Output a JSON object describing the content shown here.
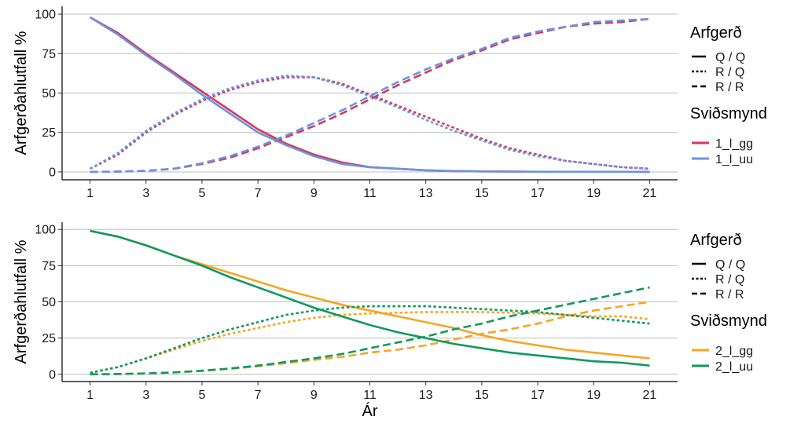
{
  "chart_data": [
    {
      "type": "line",
      "panel": "top",
      "xlabel": "",
      "ylabel": "Arfgerðahlutfall %",
      "xlim": [
        1,
        21
      ],
      "ylim": [
        0,
        100
      ],
      "x_ticks": [
        1,
        3,
        5,
        7,
        9,
        11,
        13,
        15,
        17,
        19,
        21
      ],
      "y_ticks": [
        0,
        25,
        50,
        75,
        100
      ],
      "grid": "horizontal",
      "legend_position": "right",
      "legend": {
        "genotype_title": "Arfgerð",
        "genotypes": [
          {
            "label": "Q / Q",
            "linetype": "solid"
          },
          {
            "label": "R / Q",
            "linetype": "dotted"
          },
          {
            "label": "R / R",
            "linetype": "dashed"
          }
        ],
        "scenario_title": "Sviðsmynd",
        "scenarios": [
          {
            "label": "1_l_gg",
            "color": "#d6375c"
          },
          {
            "label": "1_l_uu",
            "color": "#6b93e0"
          }
        ]
      },
      "x": [
        1,
        2,
        3,
        4,
        5,
        6,
        7,
        8,
        9,
        10,
        11,
        12,
        13,
        14,
        15,
        16,
        17,
        18,
        19,
        20,
        21
      ],
      "series": [
        {
          "scenario": "1_l_gg",
          "genotype": "Q / Q",
          "values": [
            98,
            88,
            75,
            63,
            51,
            39,
            27,
            18,
            11,
            6,
            3,
            2,
            1,
            0.5,
            0.3,
            0.2,
            0.1,
            0.1,
            0.1,
            0.1,
            0
          ]
        },
        {
          "scenario": "1_l_gg",
          "genotype": "R / Q",
          "values": [
            2,
            11,
            25,
            36,
            45,
            52,
            57,
            60,
            60,
            56,
            49,
            42,
            35,
            28,
            21,
            15,
            11,
            7,
            5,
            3,
            2
          ]
        },
        {
          "scenario": "1_l_gg",
          "genotype": "R / R",
          "values": [
            0,
            0.2,
            0.7,
            2,
            5,
            9,
            15,
            22,
            29,
            37,
            46,
            55,
            63,
            71,
            77,
            84,
            88,
            92,
            94,
            95,
            97
          ]
        },
        {
          "scenario": "1_l_uu",
          "genotype": "Q / Q",
          "values": [
            98,
            87,
            74,
            62,
            49,
            37,
            25,
            17,
            10,
            5,
            3,
            2,
            1,
            0.5,
            0.3,
            0.2,
            0.1,
            0.1,
            0.1,
            0.1,
            0
          ]
        },
        {
          "scenario": "1_l_uu",
          "genotype": "R / Q",
          "values": [
            2,
            12,
            26,
            37,
            46,
            53,
            58,
            61,
            60,
            55,
            48,
            41,
            33,
            26,
            20,
            14,
            10,
            7,
            5,
            3,
            2
          ]
        },
        {
          "scenario": "1_l_uu",
          "genotype": "R / R",
          "values": [
            0,
            0.2,
            0.7,
            2,
            5.5,
            10,
            16,
            23,
            31,
            39,
            48,
            57,
            65,
            72,
            78,
            85,
            89,
            92,
            95,
            96,
            97
          ]
        }
      ]
    },
    {
      "type": "line",
      "panel": "bottom",
      "xlabel": "Ár",
      "ylabel": "Arfgerðahlutfall %",
      "xlim": [
        1,
        21
      ],
      "ylim": [
        0,
        100
      ],
      "x_ticks": [
        1,
        3,
        5,
        7,
        9,
        11,
        13,
        15,
        17,
        19,
        21
      ],
      "y_ticks": [
        0,
        25,
        50,
        75,
        100
      ],
      "grid": "horizontal",
      "legend_position": "right",
      "legend": {
        "genotype_title": "Arfgerð",
        "genotypes": [
          {
            "label": "Q / Q",
            "linetype": "solid"
          },
          {
            "label": "R / Q",
            "linetype": "dotted"
          },
          {
            "label": "R / R",
            "linetype": "dashed"
          }
        ],
        "scenario_title": "Sviðsmynd",
        "scenarios": [
          {
            "label": "2_l_gg",
            "color": "#f5a623"
          },
          {
            "label": "2_l_uu",
            "color": "#0f9960"
          }
        ]
      },
      "x": [
        1,
        2,
        3,
        4,
        5,
        6,
        7,
        8,
        9,
        10,
        11,
        12,
        13,
        14,
        15,
        16,
        17,
        18,
        19,
        20,
        21
      ],
      "series": [
        {
          "scenario": "2_l_gg",
          "genotype": "Q / Q",
          "values": [
            99,
            95,
            89,
            82,
            76,
            70,
            64,
            58,
            53,
            48,
            44,
            40,
            36,
            32,
            27,
            23,
            20,
            17,
            15,
            13,
            11
          ]
        },
        {
          "scenario": "2_l_gg",
          "genotype": "R / Q",
          "values": [
            1,
            5,
            11,
            17,
            23,
            28,
            32,
            36,
            39,
            41,
            42,
            42.5,
            43,
            43,
            43,
            42.5,
            42,
            41,
            40,
            40,
            38
          ]
        },
        {
          "scenario": "2_l_gg",
          "genotype": "R / R",
          "values": [
            0,
            0.2,
            0.6,
            1.3,
            2.3,
            3.8,
            5.5,
            7.7,
            10,
            12,
            15,
            17,
            20,
            24,
            28,
            31,
            35,
            40,
            44,
            47,
            50
          ]
        },
        {
          "scenario": "2_l_uu",
          "genotype": "Q / Q",
          "values": [
            99,
            95,
            89,
            82,
            75,
            67,
            60,
            53,
            46,
            40,
            34,
            29,
            25,
            21,
            18,
            15,
            13,
            11,
            9,
            8,
            6
          ]
        },
        {
          "scenario": "2_l_uu",
          "genotype": "R / Q",
          "values": [
            1,
            5,
            11,
            18,
            25,
            31,
            36,
            41,
            44,
            46,
            47,
            47,
            47,
            46,
            45,
            44,
            43,
            41,
            39,
            37,
            35
          ]
        },
        {
          "scenario": "2_l_uu",
          "genotype": "R / R",
          "values": [
            0,
            0.2,
            0.6,
            1.3,
            2.5,
            4,
            6,
            8.5,
            11,
            14,
            18,
            22,
            26,
            31,
            35,
            40,
            44,
            48,
            52,
            56,
            60
          ]
        }
      ]
    }
  ]
}
